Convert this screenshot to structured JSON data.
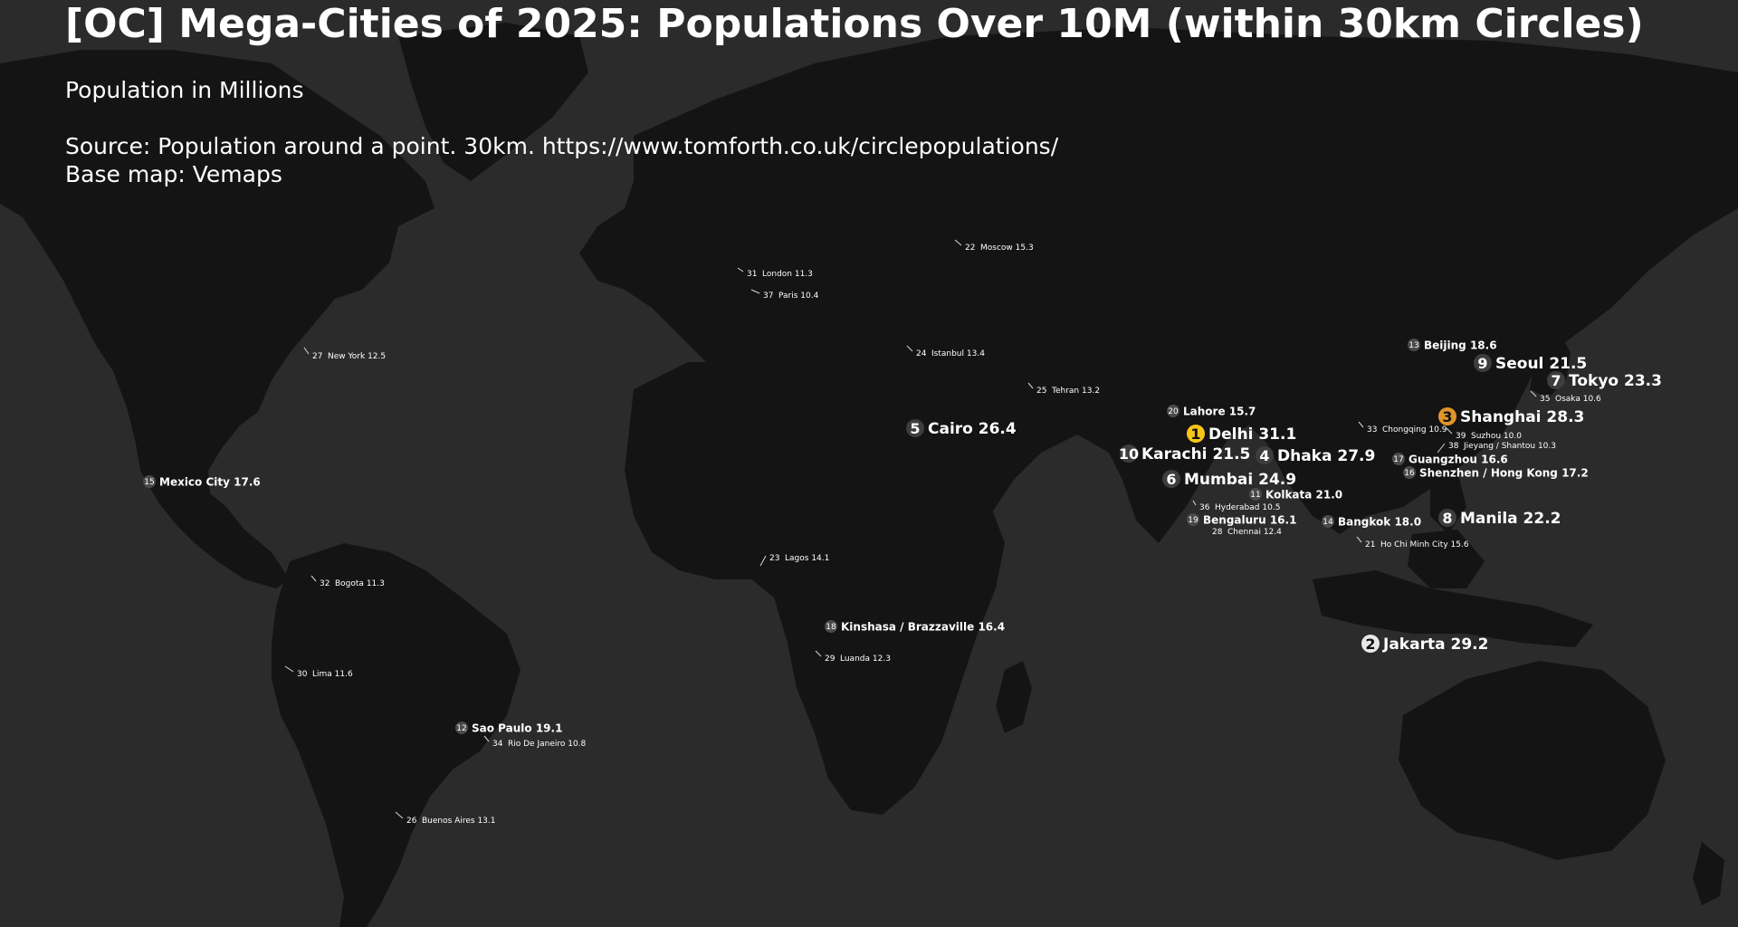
{
  "header": {
    "title": "[OC] Mega-Cities of 2025: Populations Over 10M (within 30km Circles)",
    "subtitle": "Population in Millions",
    "source_line": "Source: Population around a point. 30km. https://www.tomforth.co.uk/circlepopulations/",
    "basemap_line": "Base map: Vemaps"
  },
  "colors": {
    "ocean": "#2b2b2b",
    "land": "#141414",
    "text": "#ffffff",
    "rank1": "#f5c518",
    "rank2": "#e8e8e8",
    "rank3": "#e0962b",
    "top_badge": "#3d3d3d",
    "mid_badge": "#4a4a4a"
  },
  "cities": [
    {
      "rank": "1",
      "name": "Delhi",
      "pop": "31.1"
    },
    {
      "rank": "2",
      "name": "Jakarta",
      "pop": "29.2"
    },
    {
      "rank": "3",
      "name": "Shanghai",
      "pop": "28.3"
    },
    {
      "rank": "4",
      "name": "Dhaka",
      "pop": "27.9"
    },
    {
      "rank": "5",
      "name": "Cairo",
      "pop": "26.4"
    },
    {
      "rank": "6",
      "name": "Mumbai",
      "pop": "24.9"
    },
    {
      "rank": "7",
      "name": "Tokyo",
      "pop": "23.3"
    },
    {
      "rank": "8",
      "name": "Manila",
      "pop": "22.2"
    },
    {
      "rank": "9",
      "name": "Seoul",
      "pop": "21.5"
    },
    {
      "rank": "10",
      "name": "Karachi",
      "pop": "21.5"
    },
    {
      "rank": "11",
      "name": "Kolkata",
      "pop": "21.0"
    },
    {
      "rank": "12",
      "name": "Sao Paulo",
      "pop": "19.1"
    },
    {
      "rank": "13",
      "name": "Beijing",
      "pop": "18.6"
    },
    {
      "rank": "14",
      "name": "Bangkok",
      "pop": "18.0"
    },
    {
      "rank": "15",
      "name": "Mexico City",
      "pop": "17.6"
    },
    {
      "rank": "16",
      "name": "Shenzhen / Hong Kong",
      "pop": "17.2"
    },
    {
      "rank": "17",
      "name": "Guangzhou",
      "pop": "16.6"
    },
    {
      "rank": "18",
      "name": "Kinshasa / Brazzaville",
      "pop": "16.4"
    },
    {
      "rank": "19",
      "name": "Bengaluru",
      "pop": "16.1"
    },
    {
      "rank": "20",
      "name": "Lahore",
      "pop": "15.7"
    },
    {
      "rank": "21",
      "name": "Ho Chi Minh City",
      "pop": "15.6"
    },
    {
      "rank": "22",
      "name": "Moscow",
      "pop": "15.3"
    },
    {
      "rank": "23",
      "name": "Lagos",
      "pop": "14.1"
    },
    {
      "rank": "24",
      "name": "Istanbul",
      "pop": "13.4"
    },
    {
      "rank": "25",
      "name": "Tehran",
      "pop": "13.2"
    },
    {
      "rank": "26",
      "name": "Buenos Aires",
      "pop": "13.1"
    },
    {
      "rank": "27",
      "name": "New York",
      "pop": "12.5"
    },
    {
      "rank": "28",
      "name": "Chennai",
      "pop": "12.4"
    },
    {
      "rank": "29",
      "name": "Luanda",
      "pop": "12.3"
    },
    {
      "rank": "30",
      "name": "Lima",
      "pop": "11.6"
    },
    {
      "rank": "31",
      "name": "London",
      "pop": "11.3"
    },
    {
      "rank": "32",
      "name": "Bogota",
      "pop": "11.3"
    },
    {
      "rank": "33",
      "name": "Chongqing",
      "pop": "10.9"
    },
    {
      "rank": "34",
      "name": "Rio De Janeiro",
      "pop": "10.8"
    },
    {
      "rank": "35",
      "name": "Osaka",
      "pop": "10.6"
    },
    {
      "rank": "36",
      "name": "Hyderabad",
      "pop": "10.5"
    },
    {
      "rank": "37",
      "name": "Paris",
      "pop": "10.4"
    },
    {
      "rank": "38",
      "name": "Jieyang / Shantou",
      "pop": "10.3"
    },
    {
      "rank": "39",
      "name": "Suzhou",
      "pop": "10.0"
    }
  ]
}
